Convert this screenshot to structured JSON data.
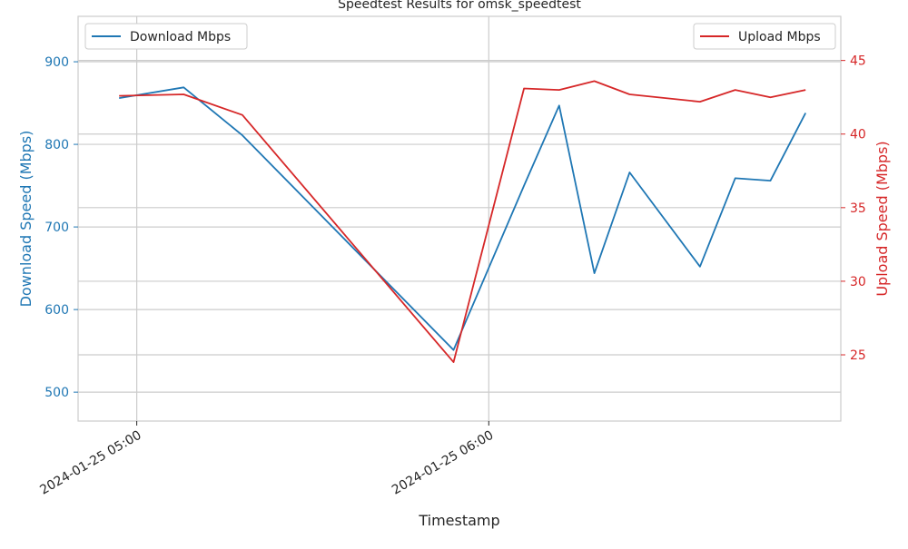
{
  "chart_data": {
    "type": "line",
    "title": "Speedtest Results for omsk_speedtest",
    "xlabel": "Timestamp",
    "ylabel_left": "Download Speed (Mbps)",
    "ylabel_right": "Upload Speed (Mbps)",
    "x": [
      "2024-01-25 04:57",
      "2024-01-25 05:08",
      "2024-01-25 05:18",
      "2024-01-25 05:54",
      "2024-01-25 06:06",
      "2024-01-25 06:12",
      "2024-01-25 06:18",
      "2024-01-25 06:24",
      "2024-01-25 06:36",
      "2024-01-25 06:42",
      "2024-01-25 06:48",
      "2024-01-25 06:54"
    ],
    "x_ticks": [
      "2024-01-25 05:00",
      "2024-01-25 06:00"
    ],
    "xlim": [
      "2024-01-25 04:50",
      "2024-01-25 07:00"
    ],
    "ylim_left": [
      465,
      955
    ],
    "yticks_left": [
      500,
      600,
      700,
      800,
      900
    ],
    "ylim_right": [
      20.5,
      48
    ],
    "yticks_right": [
      25,
      30,
      35,
      40,
      45
    ],
    "grid": true,
    "colors": {
      "download": "#1f77b4",
      "upload": "#d62728",
      "grid": "#cccccc",
      "axis": "#cccccc",
      "text": "#262626"
    },
    "series": [
      {
        "name": "Download Mbps",
        "axis": "left",
        "values": [
          856,
          869,
          811,
          551,
          750,
          847,
          644,
          766,
          652,
          759,
          756,
          838
        ]
      },
      {
        "name": "Upload Mbps",
        "axis": "right",
        "values": [
          42.6,
          42.7,
          41.3,
          24.5,
          43.1,
          43.0,
          43.6,
          42.7,
          42.2,
          43.0,
          42.5,
          43.0
        ]
      }
    ],
    "legend_left": "top-left",
    "legend_right": "top-right"
  }
}
